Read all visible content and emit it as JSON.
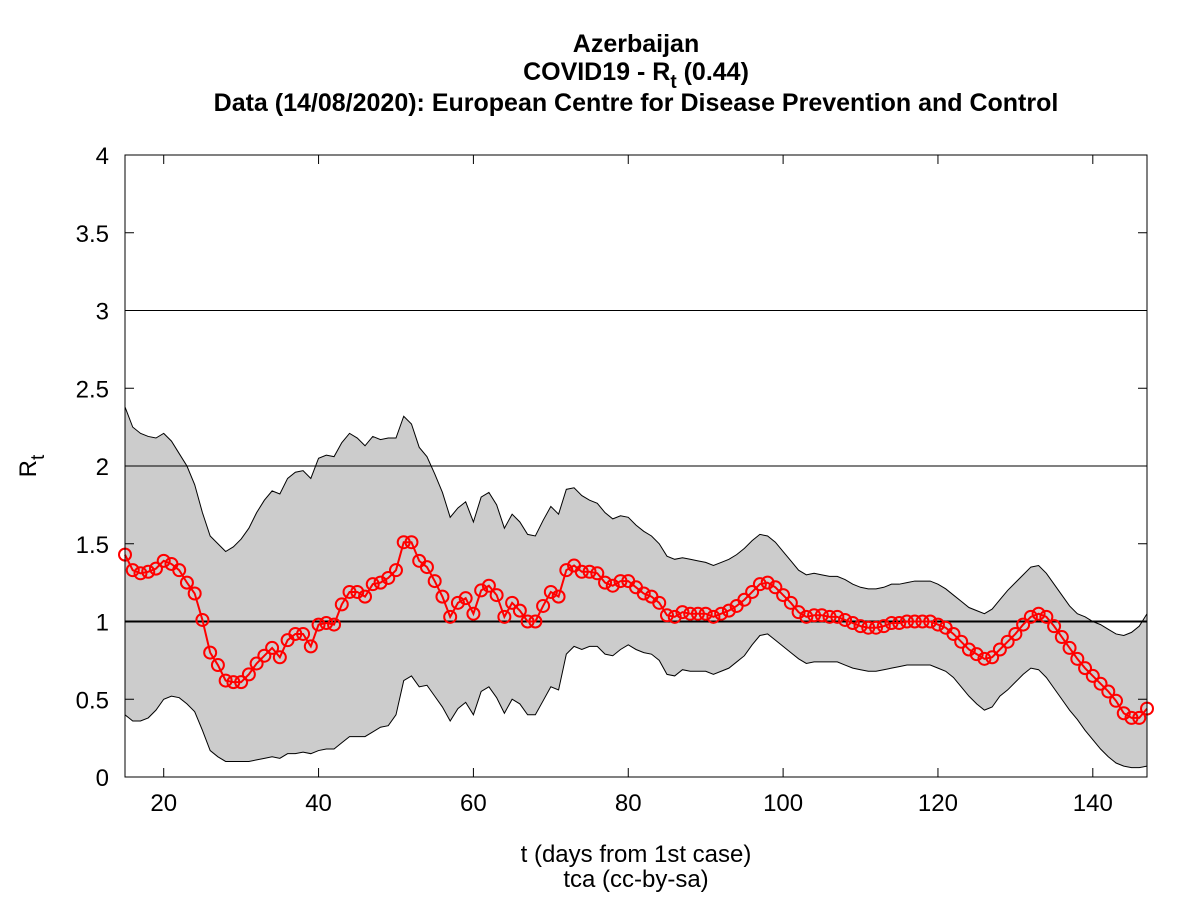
{
  "chart_data": {
    "type": "line",
    "title": "Azerbaijan",
    "subtitle": {
      "text": "COVID19 - R",
      "sub": "t",
      "rest": " (0.44)"
    },
    "source": "Data (14/08/2020): European Centre for Disease Prevention and Control",
    "xlabel": "t (days from 1st case)",
    "caption": "tca (cc-by-sa)",
    "ylabel": {
      "text": "R",
      "sub": "t"
    },
    "xlim": [
      15,
      147
    ],
    "ylim": [
      0,
      4
    ],
    "xticks": [
      20,
      40,
      60,
      80,
      100,
      120,
      140
    ],
    "yticks": [
      0,
      0.5,
      1,
      1.5,
      2,
      2.5,
      3,
      3.5,
      4
    ],
    "hlines": [
      1,
      2,
      3
    ],
    "color": "#ff0000",
    "band_color": "#cccccc",
    "x": [
      15,
      16,
      17,
      18,
      19,
      20,
      21,
      22,
      23,
      24,
      25,
      26,
      27,
      28,
      29,
      30,
      31,
      32,
      33,
      34,
      35,
      36,
      37,
      38,
      39,
      40,
      41,
      42,
      43,
      44,
      45,
      46,
      47,
      48,
      49,
      50,
      51,
      52,
      53,
      54,
      55,
      56,
      57,
      58,
      59,
      60,
      61,
      62,
      63,
      64,
      65,
      66,
      67,
      68,
      69,
      70,
      71,
      72,
      73,
      74,
      75,
      76,
      77,
      78,
      79,
      80,
      81,
      82,
      83,
      84,
      85,
      86,
      87,
      88,
      89,
      90,
      91,
      92,
      93,
      94,
      95,
      96,
      97,
      98,
      99,
      100,
      101,
      102,
      103,
      104,
      105,
      106,
      107,
      108,
      109,
      110,
      111,
      112,
      113,
      114,
      115,
      116,
      117,
      118,
      119,
      120,
      121,
      122,
      123,
      124,
      125,
      126,
      127,
      128,
      129,
      130,
      131,
      132,
      133,
      134,
      135,
      136,
      137,
      138,
      139,
      140,
      141,
      142,
      143,
      144,
      145,
      146,
      147
    ],
    "values": [
      1.43,
      1.33,
      1.31,
      1.32,
      1.34,
      1.39,
      1.37,
      1.33,
      1.25,
      1.18,
      1.01,
      0.8,
      0.72,
      0.62,
      0.61,
      0.61,
      0.66,
      0.73,
      0.78,
      0.83,
      0.77,
      0.88,
      0.92,
      0.92,
      0.84,
      0.98,
      0.99,
      0.98,
      1.11,
      1.19,
      1.19,
      1.16,
      1.24,
      1.25,
      1.28,
      1.33,
      1.51,
      1.51,
      1.39,
      1.35,
      1.26,
      1.16,
      1.03,
      1.12,
      1.15,
      1.05,
      1.2,
      1.23,
      1.17,
      1.03,
      1.12,
      1.07,
      1.0,
      1.0,
      1.1,
      1.19,
      1.16,
      1.33,
      1.36,
      1.32,
      1.32,
      1.31,
      1.25,
      1.23,
      1.26,
      1.26,
      1.22,
      1.18,
      1.16,
      1.12,
      1.04,
      1.03,
      1.06,
      1.05,
      1.05,
      1.05,
      1.03,
      1.05,
      1.07,
      1.1,
      1.14,
      1.19,
      1.24,
      1.25,
      1.22,
      1.17,
      1.12,
      1.06,
      1.03,
      1.04,
      1.04,
      1.03,
      1.03,
      1.01,
      0.99,
      0.97,
      0.96,
      0.96,
      0.97,
      0.99,
      0.99,
      1.0,
      1.0,
      1.0,
      1.0,
      0.98,
      0.96,
      0.92,
      0.87,
      0.82,
      0.79,
      0.76,
      0.77,
      0.82,
      0.87,
      0.92,
      0.98,
      1.03,
      1.05,
      1.03,
      0.97,
      0.9,
      0.83,
      0.76,
      0.7,
      0.65,
      0.6,
      0.55,
      0.49,
      0.41,
      0.38,
      0.38,
      0.44
    ],
    "upper": [
      2.38,
      2.25,
      2.21,
      2.19,
      2.18,
      2.21,
      2.16,
      2.08,
      2.0,
      1.88,
      1.7,
      1.55,
      1.5,
      1.45,
      1.48,
      1.53,
      1.6,
      1.7,
      1.78,
      1.84,
      1.82,
      1.92,
      1.96,
      1.97,
      1.92,
      2.05,
      2.07,
      2.06,
      2.15,
      2.21,
      2.18,
      2.13,
      2.19,
      2.17,
      2.18,
      2.18,
      2.32,
      2.27,
      2.12,
      2.06,
      1.95,
      1.83,
      1.67,
      1.73,
      1.77,
      1.64,
      1.8,
      1.83,
      1.75,
      1.6,
      1.69,
      1.64,
      1.56,
      1.55,
      1.65,
      1.74,
      1.69,
      1.85,
      1.86,
      1.81,
      1.78,
      1.76,
      1.7,
      1.66,
      1.68,
      1.67,
      1.62,
      1.58,
      1.55,
      1.5,
      1.42,
      1.4,
      1.41,
      1.4,
      1.39,
      1.38,
      1.36,
      1.38,
      1.4,
      1.43,
      1.47,
      1.52,
      1.56,
      1.55,
      1.51,
      1.45,
      1.39,
      1.33,
      1.3,
      1.31,
      1.3,
      1.29,
      1.29,
      1.27,
      1.24,
      1.22,
      1.21,
      1.21,
      1.22,
      1.24,
      1.24,
      1.25,
      1.26,
      1.26,
      1.26,
      1.24,
      1.21,
      1.17,
      1.13,
      1.09,
      1.07,
      1.05,
      1.08,
      1.14,
      1.2,
      1.25,
      1.3,
      1.35,
      1.36,
      1.31,
      1.24,
      1.17,
      1.1,
      1.05,
      1.03,
      1.0,
      0.98,
      0.95,
      0.92,
      0.91,
      0.93,
      0.97,
      1.05
    ],
    "lower": [
      0.4,
      0.36,
      0.36,
      0.38,
      0.43,
      0.5,
      0.52,
      0.51,
      0.47,
      0.42,
      0.3,
      0.17,
      0.13,
      0.1,
      0.1,
      0.1,
      0.1,
      0.11,
      0.12,
      0.13,
      0.12,
      0.15,
      0.15,
      0.16,
      0.15,
      0.17,
      0.18,
      0.18,
      0.22,
      0.26,
      0.26,
      0.26,
      0.29,
      0.32,
      0.33,
      0.4,
      0.62,
      0.65,
      0.58,
      0.59,
      0.52,
      0.45,
      0.36,
      0.44,
      0.48,
      0.4,
      0.55,
      0.58,
      0.51,
      0.41,
      0.5,
      0.47,
      0.4,
      0.4,
      0.49,
      0.58,
      0.56,
      0.79,
      0.84,
      0.82,
      0.84,
      0.84,
      0.79,
      0.78,
      0.82,
      0.85,
      0.82,
      0.8,
      0.79,
      0.75,
      0.66,
      0.65,
      0.69,
      0.68,
      0.68,
      0.68,
      0.66,
      0.68,
      0.7,
      0.74,
      0.78,
      0.85,
      0.91,
      0.92,
      0.88,
      0.84,
      0.8,
      0.76,
      0.73,
      0.74,
      0.74,
      0.74,
      0.74,
      0.72,
      0.7,
      0.69,
      0.68,
      0.68,
      0.69,
      0.7,
      0.71,
      0.72,
      0.72,
      0.72,
      0.72,
      0.7,
      0.68,
      0.64,
      0.58,
      0.52,
      0.47,
      0.43,
      0.45,
      0.52,
      0.56,
      0.61,
      0.66,
      0.7,
      0.69,
      0.64,
      0.57,
      0.5,
      0.43,
      0.37,
      0.3,
      0.24,
      0.18,
      0.13,
      0.09,
      0.07,
      0.06,
      0.06,
      0.07
    ]
  }
}
